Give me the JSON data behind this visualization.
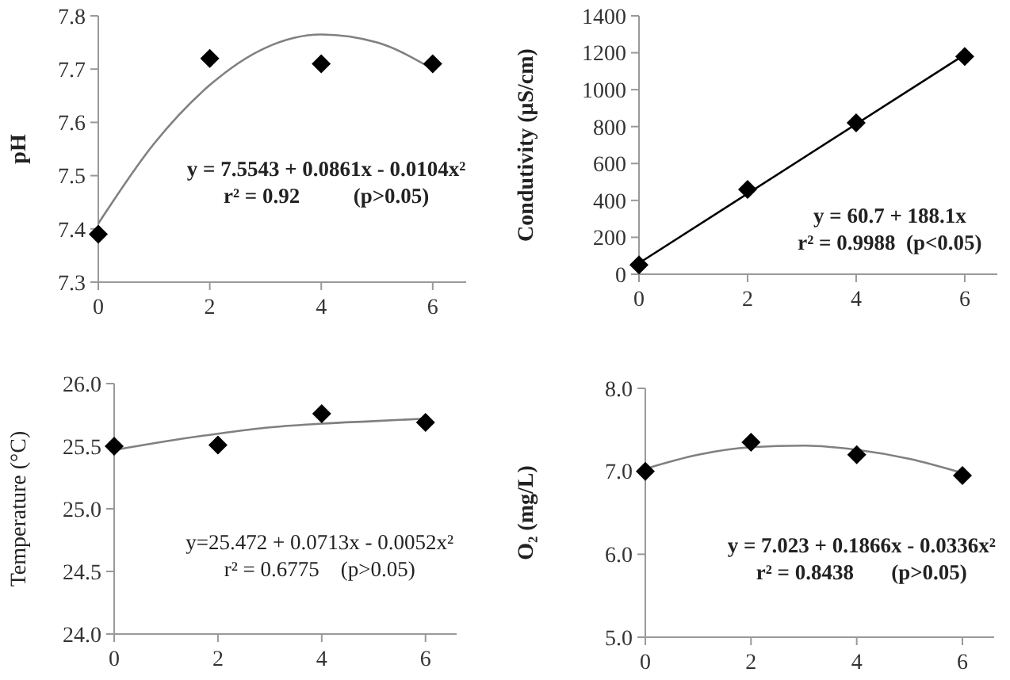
{
  "chart_data": [
    {
      "type": "scatter",
      "ylabel": "pH",
      "xlim": [
        0,
        6.6
      ],
      "xticks": [
        0,
        2,
        4,
        6
      ],
      "ylim": [
        7.3,
        7.8
      ],
      "yticks": [
        7.3,
        7.4,
        7.5,
        7.6,
        7.7,
        7.8
      ],
      "grid": false,
      "marker": "diamond",
      "x": [
        0,
        2,
        4,
        6
      ],
      "series": [
        {
          "color": "#000000",
          "values": [
            7.39,
            7.72,
            7.71,
            7.71
          ]
        },
        {
          "type": "line",
          "color": "#808080",
          "marker": "none",
          "line_style": "solid",
          "x": [
            0,
            1,
            2,
            3,
            4,
            5,
            6
          ],
          "values": [
            7.41,
            7.56,
            7.67,
            7.74,
            7.765,
            7.75,
            7.7
          ]
        }
      ],
      "annotations": [
        "y = 7.5543 + 0.0861x - 0.0104x²",
        "r² = 0.92          (p>0.05)"
      ]
    },
    {
      "type": "scatter",
      "ylabel": "Condutivity (μS/cm)",
      "xlim": [
        0,
        6.6
      ],
      "xticks": [
        0,
        2,
        4,
        6
      ],
      "ylim": [
        0,
        1400
      ],
      "yticks": [
        0,
        200,
        400,
        600,
        800,
        1000,
        1200,
        1400
      ],
      "grid": false,
      "marker": "diamond",
      "x": [
        0,
        2,
        4,
        6
      ],
      "series": [
        {
          "color": "#000000",
          "values": [
            50,
            460,
            820,
            1180
          ]
        },
        {
          "type": "line",
          "color": "#000000",
          "marker": "none",
          "line_style": "solid",
          "x": [
            0,
            6
          ],
          "values": [
            60,
            1190
          ]
        }
      ],
      "annotations": [
        "y = 60.7 + 188.1x",
        "r² = 0.9988  (p<0.05)"
      ]
    },
    {
      "type": "scatter",
      "ylabel": "Temperature (°C)",
      "xlim": [
        0,
        6.6
      ],
      "xticks": [
        0,
        2,
        4,
        6
      ],
      "ylim": [
        24,
        26
      ],
      "yticks": [
        {
          "value": 24,
          "label": "24.0"
        },
        24.5,
        {
          "value": 25,
          "label": "25.0"
        },
        25.5,
        {
          "value": 26,
          "label": "26.0"
        }
      ],
      "grid": false,
      "marker": "diamond",
      "x": [
        0,
        2,
        4,
        6
      ],
      "series": [
        {
          "color": "#000000",
          "values": [
            25.5,
            25.51,
            25.76,
            25.69
          ]
        },
        {
          "type": "line",
          "color": "#808080",
          "marker": "none",
          "line_style": "solid",
          "x": [
            0,
            1,
            2,
            3,
            4,
            5,
            6
          ],
          "values": [
            25.47,
            25.54,
            25.6,
            25.65,
            25.68,
            25.7,
            25.72
          ]
        }
      ],
      "annotations": [
        "y=25.472 + 0.0713x - 0.0052x²",
        "r² = 0.6775    (p>0.05)"
      ]
    },
    {
      "type": "scatter",
      "ylabel": "O₂ (mg/L)",
      "xlim": [
        0,
        6.6
      ],
      "xticks": [
        0,
        2,
        4,
        6
      ],
      "ylim": [
        5,
        8
      ],
      "yticks": [
        {
          "value": 5,
          "label": "5.0"
        },
        {
          "value": 6,
          "label": "6.0"
        },
        {
          "value": 7,
          "label": "7.0"
        },
        {
          "value": 8,
          "label": "8.0"
        }
      ],
      "grid": false,
      "marker": "diamond",
      "x": [
        0,
        2,
        4,
        6
      ],
      "series": [
        {
          "color": "#000000",
          "values": [
            7.0,
            7.35,
            7.2,
            6.95
          ]
        },
        {
          "type": "line",
          "color": "#808080",
          "marker": "none",
          "line_style": "solid",
          "x": [
            0,
            1,
            2,
            3,
            4,
            5,
            6
          ],
          "values": [
            7.03,
            7.2,
            7.29,
            7.31,
            7.26,
            7.15,
            6.98
          ]
        }
      ],
      "annotations": [
        "y = 7.023 + 0.1866x - 0.0336x²",
        "r² = 0.8438       (p>0.05)"
      ]
    }
  ]
}
